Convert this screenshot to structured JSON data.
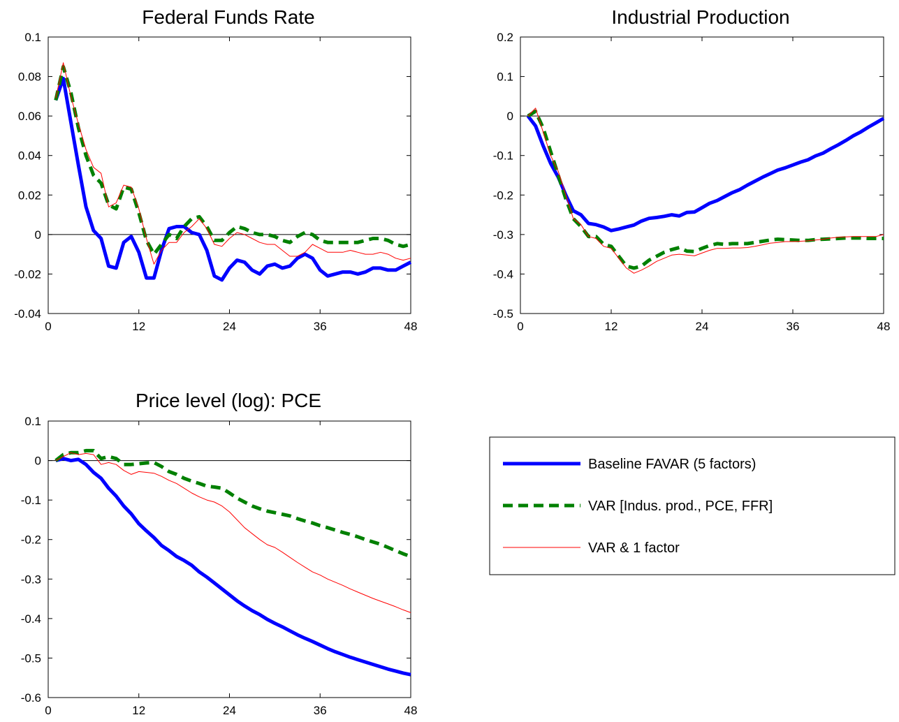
{
  "chart_data": [
    {
      "type": "line",
      "title": "Federal Funds Rate",
      "xlim": [
        0,
        48
      ],
      "ylim": [
        -0.04,
        0.1
      ],
      "xticks": [
        "0",
        "12",
        "24",
        "36",
        "48"
      ],
      "yticks": [
        "-0.04",
        "-0.02",
        "0",
        "0.02",
        "0.04",
        "0.06",
        "0.08",
        "0.1"
      ],
      "zero_line": true,
      "series": [
        {
          "name": "Baseline FAVAR (5 factors)",
          "x": [
            1,
            2,
            3,
            4,
            5,
            6,
            7,
            8,
            9,
            10,
            11,
            12,
            13,
            14,
            15,
            16,
            17,
            18,
            19,
            20,
            21,
            22,
            23,
            24,
            25,
            26,
            27,
            28,
            29,
            30,
            31,
            32,
            33,
            34,
            35,
            36,
            37,
            38,
            39,
            40,
            41,
            42,
            43,
            44,
            45,
            46,
            47,
            48
          ],
          "y": [
            0.068,
            0.079,
            0.057,
            0.035,
            0.014,
            0.002,
            -0.002,
            -0.016,
            -0.017,
            -0.004,
            -0.001,
            -0.009,
            -0.022,
            -0.022,
            -0.008,
            0.003,
            0.004,
            0.004,
            0.001,
            0.0,
            -0.008,
            -0.021,
            -0.023,
            -0.017,
            -0.013,
            -0.014,
            -0.018,
            -0.02,
            -0.016,
            -0.015,
            -0.017,
            -0.016,
            -0.012,
            -0.01,
            -0.012,
            -0.018,
            -0.021,
            -0.02,
            -0.019,
            -0.019,
            -0.02,
            -0.019,
            -0.017,
            -0.017,
            -0.018,
            -0.018,
            -0.016,
            -0.014
          ]
        },
        {
          "name": "VAR [Indus. prod., PCE, FFR]",
          "x": [
            1,
            2,
            3,
            4,
            5,
            6,
            7,
            8,
            9,
            10,
            11,
            12,
            13,
            14,
            15,
            16,
            17,
            18,
            19,
            20,
            21,
            22,
            23,
            24,
            25,
            26,
            27,
            28,
            29,
            30,
            31,
            32,
            33,
            34,
            35,
            36,
            37,
            38,
            39,
            40,
            41,
            42,
            43,
            44,
            45,
            46,
            47,
            48
          ],
          "y": [
            0.068,
            0.085,
            0.072,
            0.054,
            0.04,
            0.03,
            0.026,
            0.015,
            0.013,
            0.024,
            0.023,
            0.011,
            -0.003,
            -0.01,
            -0.005,
            0.0,
            -0.002,
            0.004,
            0.008,
            0.009,
            0.004,
            -0.003,
            -0.003,
            0.001,
            0.004,
            0.003,
            0.001,
            0.0,
            0.0,
            -0.001,
            -0.003,
            -0.004,
            -0.001,
            0.001,
            0.0,
            -0.003,
            -0.004,
            -0.004,
            -0.004,
            -0.004,
            -0.004,
            -0.003,
            -0.002,
            -0.002,
            -0.003,
            -0.005,
            -0.006,
            -0.005
          ]
        },
        {
          "name": "VAR & 1 factor",
          "x": [
            1,
            2,
            3,
            4,
            5,
            6,
            7,
            8,
            9,
            10,
            11,
            12,
            13,
            14,
            15,
            16,
            17,
            18,
            19,
            20,
            21,
            22,
            23,
            24,
            25,
            26,
            27,
            28,
            29,
            30,
            31,
            32,
            33,
            34,
            35,
            36,
            37,
            38,
            39,
            40,
            41,
            42,
            43,
            44,
            45,
            46,
            47,
            48
          ],
          "y": [
            0.069,
            0.087,
            0.07,
            0.056,
            0.043,
            0.034,
            0.031,
            0.014,
            0.016,
            0.025,
            0.024,
            0.013,
            -0.002,
            -0.015,
            -0.008,
            -0.004,
            -0.004,
            0.001,
            0.004,
            0.008,
            0.003,
            -0.005,
            -0.006,
            -0.002,
            0.001,
            0.0,
            -0.002,
            -0.004,
            -0.005,
            -0.005,
            -0.008,
            -0.011,
            -0.011,
            -0.009,
            -0.005,
            -0.007,
            -0.009,
            -0.009,
            -0.009,
            -0.008,
            -0.009,
            -0.01,
            -0.01,
            -0.009,
            -0.01,
            -0.012,
            -0.013,
            -0.012
          ]
        }
      ]
    },
    {
      "type": "line",
      "title": "Industrial Production",
      "xlim": [
        0,
        48
      ],
      "ylim": [
        -0.5,
        0.2
      ],
      "xticks": [
        "0",
        "12",
        "24",
        "36",
        "48"
      ],
      "yticks": [
        "-0.5",
        "-0.4",
        "-0.3",
        "-0.2",
        "-0.1",
        "0",
        "0.1",
        "0.2"
      ],
      "zero_line": true,
      "series": [
        {
          "name": "Baseline FAVAR (5 factors)",
          "x": [
            1,
            2,
            3,
            4,
            5,
            6,
            7,
            8,
            9,
            10,
            11,
            12,
            13,
            14,
            15,
            16,
            17,
            18,
            19,
            20,
            21,
            22,
            23,
            24,
            25,
            26,
            27,
            28,
            29,
            30,
            31,
            32,
            33,
            34,
            35,
            36,
            37,
            38,
            39,
            40,
            41,
            42,
            43,
            44,
            45,
            46,
            47,
            48
          ],
          "y": [
            0.0,
            -0.025,
            -0.075,
            -0.12,
            -0.155,
            -0.2,
            -0.24,
            -0.25,
            -0.272,
            -0.275,
            -0.281,
            -0.29,
            -0.286,
            -0.281,
            -0.276,
            -0.266,
            -0.259,
            -0.257,
            -0.254,
            -0.25,
            -0.253,
            -0.244,
            -0.243,
            -0.232,
            -0.221,
            -0.214,
            -0.204,
            -0.194,
            -0.186,
            -0.175,
            -0.165,
            -0.155,
            -0.146,
            -0.137,
            -0.131,
            -0.124,
            -0.117,
            -0.111,
            -0.101,
            -0.094,
            -0.083,
            -0.073,
            -0.062,
            -0.05,
            -0.04,
            -0.028,
            -0.017,
            -0.006
          ]
        },
        {
          "name": "VAR [Indus. prod., PCE, FFR]",
          "x": [
            1,
            2,
            3,
            4,
            5,
            6,
            7,
            8,
            9,
            10,
            11,
            12,
            13,
            14,
            15,
            16,
            17,
            18,
            19,
            20,
            21,
            22,
            23,
            24,
            25,
            26,
            27,
            28,
            29,
            30,
            31,
            32,
            33,
            34,
            35,
            36,
            37,
            38,
            39,
            40,
            41,
            42,
            43,
            44,
            45,
            46,
            47,
            48
          ],
          "y": [
            0.0,
            0.012,
            -0.03,
            -0.09,
            -0.15,
            -0.21,
            -0.26,
            -0.28,
            -0.305,
            -0.305,
            -0.325,
            -0.33,
            -0.355,
            -0.38,
            -0.385,
            -0.38,
            -0.365,
            -0.355,
            -0.345,
            -0.338,
            -0.333,
            -0.342,
            -0.343,
            -0.335,
            -0.328,
            -0.323,
            -0.325,
            -0.323,
            -0.323,
            -0.323,
            -0.32,
            -0.317,
            -0.314,
            -0.312,
            -0.313,
            -0.314,
            -0.315,
            -0.315,
            -0.313,
            -0.312,
            -0.311,
            -0.31,
            -0.309,
            -0.309,
            -0.309,
            -0.31,
            -0.31,
            -0.31
          ]
        },
        {
          "name": "VAR & 1 factor",
          "x": [
            1,
            2,
            3,
            4,
            5,
            6,
            7,
            8,
            9,
            10,
            11,
            12,
            13,
            14,
            15,
            16,
            17,
            18,
            19,
            20,
            21,
            22,
            23,
            24,
            25,
            26,
            27,
            28,
            29,
            30,
            31,
            32,
            33,
            34,
            35,
            36,
            37,
            38,
            39,
            40,
            41,
            42,
            43,
            44,
            45,
            46,
            47,
            48
          ],
          "y": [
            0.0,
            0.02,
            -0.04,
            -0.1,
            -0.14,
            -0.2,
            -0.26,
            -0.275,
            -0.305,
            -0.31,
            -0.33,
            -0.335,
            -0.36,
            -0.385,
            -0.398,
            -0.39,
            -0.38,
            -0.368,
            -0.36,
            -0.352,
            -0.35,
            -0.352,
            -0.354,
            -0.347,
            -0.34,
            -0.335,
            -0.335,
            -0.334,
            -0.334,
            -0.333,
            -0.33,
            -0.326,
            -0.322,
            -0.32,
            -0.318,
            -0.318,
            -0.317,
            -0.316,
            -0.314,
            -0.312,
            -0.309,
            -0.307,
            -0.306,
            -0.305,
            -0.305,
            -0.305,
            -0.305,
            -0.3
          ]
        }
      ]
    },
    {
      "type": "line",
      "title": "Price level (log): PCE",
      "xlim": [
        0,
        48
      ],
      "ylim": [
        -0.6,
        0.1
      ],
      "xticks": [
        "0",
        "12",
        "24",
        "36",
        "48"
      ],
      "yticks": [
        "-0.6",
        "-0.5",
        "-0.4",
        "-0.3",
        "-0.2",
        "-0.1",
        "0",
        "0.1"
      ],
      "zero_line": true,
      "series": [
        {
          "name": "Baseline FAVAR (5 factors)",
          "x": [
            1,
            2,
            3,
            4,
            5,
            6,
            7,
            8,
            9,
            10,
            11,
            12,
            13,
            14,
            15,
            16,
            17,
            18,
            19,
            20,
            21,
            22,
            23,
            24,
            25,
            26,
            27,
            28,
            29,
            30,
            31,
            32,
            33,
            34,
            35,
            36,
            37,
            38,
            39,
            40,
            41,
            42,
            43,
            44,
            45,
            46,
            47,
            48
          ],
          "y": [
            0.0,
            0.005,
            0.0,
            0.003,
            -0.01,
            -0.03,
            -0.045,
            -0.07,
            -0.09,
            -0.115,
            -0.135,
            -0.16,
            -0.178,
            -0.195,
            -0.215,
            -0.228,
            -0.243,
            -0.253,
            -0.265,
            -0.282,
            -0.295,
            -0.31,
            -0.325,
            -0.34,
            -0.355,
            -0.368,
            -0.38,
            -0.39,
            -0.402,
            -0.412,
            -0.421,
            -0.431,
            -0.441,
            -0.45,
            -0.458,
            -0.467,
            -0.476,
            -0.484,
            -0.491,
            -0.498,
            -0.504,
            -0.51,
            -0.516,
            -0.522,
            -0.528,
            -0.533,
            -0.538,
            -0.542
          ]
        },
        {
          "name": "VAR [Indus. prod., PCE, FFR]",
          "x": [
            1,
            2,
            3,
            4,
            5,
            6,
            7,
            8,
            9,
            10,
            11,
            12,
            13,
            14,
            15,
            16,
            17,
            18,
            19,
            20,
            21,
            22,
            23,
            24,
            25,
            26,
            27,
            28,
            29,
            30,
            31,
            32,
            33,
            34,
            35,
            36,
            37,
            38,
            39,
            40,
            41,
            42,
            43,
            44,
            45,
            46,
            47,
            48
          ],
          "y": [
            0.0,
            0.015,
            0.02,
            0.02,
            0.025,
            0.025,
            0.005,
            0.01,
            0.005,
            -0.01,
            -0.01,
            -0.008,
            -0.006,
            -0.005,
            -0.015,
            -0.028,
            -0.035,
            -0.045,
            -0.052,
            -0.058,
            -0.065,
            -0.067,
            -0.07,
            -0.082,
            -0.095,
            -0.105,
            -0.115,
            -0.122,
            -0.128,
            -0.132,
            -0.136,
            -0.14,
            -0.147,
            -0.153,
            -0.158,
            -0.165,
            -0.17,
            -0.176,
            -0.182,
            -0.187,
            -0.193,
            -0.2,
            -0.206,
            -0.212,
            -0.22,
            -0.228,
            -0.236,
            -0.243
          ]
        },
        {
          "name": "VAR & 1 factor",
          "x": [
            1,
            2,
            3,
            4,
            5,
            6,
            7,
            8,
            9,
            10,
            11,
            12,
            13,
            14,
            15,
            16,
            17,
            18,
            19,
            20,
            21,
            22,
            23,
            24,
            25,
            26,
            27,
            28,
            29,
            30,
            31,
            32,
            33,
            34,
            35,
            36,
            37,
            38,
            39,
            40,
            41,
            42,
            43,
            44,
            45,
            46,
            47,
            48
          ],
          "y": [
            0.0,
            0.01,
            0.02,
            0.015,
            0.018,
            0.015,
            -0.01,
            -0.005,
            -0.01,
            -0.025,
            -0.035,
            -0.028,
            -0.03,
            -0.032,
            -0.04,
            -0.05,
            -0.058,
            -0.07,
            -0.082,
            -0.092,
            -0.1,
            -0.105,
            -0.115,
            -0.13,
            -0.15,
            -0.17,
            -0.185,
            -0.2,
            -0.213,
            -0.22,
            -0.232,
            -0.245,
            -0.258,
            -0.27,
            -0.282,
            -0.29,
            -0.3,
            -0.308,
            -0.316,
            -0.325,
            -0.333,
            -0.341,
            -0.349,
            -0.356,
            -0.363,
            -0.37,
            -0.378,
            -0.385
          ]
        }
      ]
    }
  ],
  "legend": {
    "entries": [
      {
        "label": "Baseline FAVAR (5 factors)"
      },
      {
        "label": "VAR [Indus. prod., PCE, FFR]"
      },
      {
        "label": "VAR & 1 factor"
      }
    ]
  },
  "styles": {
    "colors": {
      "baseline": "#0000ff",
      "var": "#008000",
      "var1f": "#ff0000",
      "axis": "#000000"
    }
  }
}
